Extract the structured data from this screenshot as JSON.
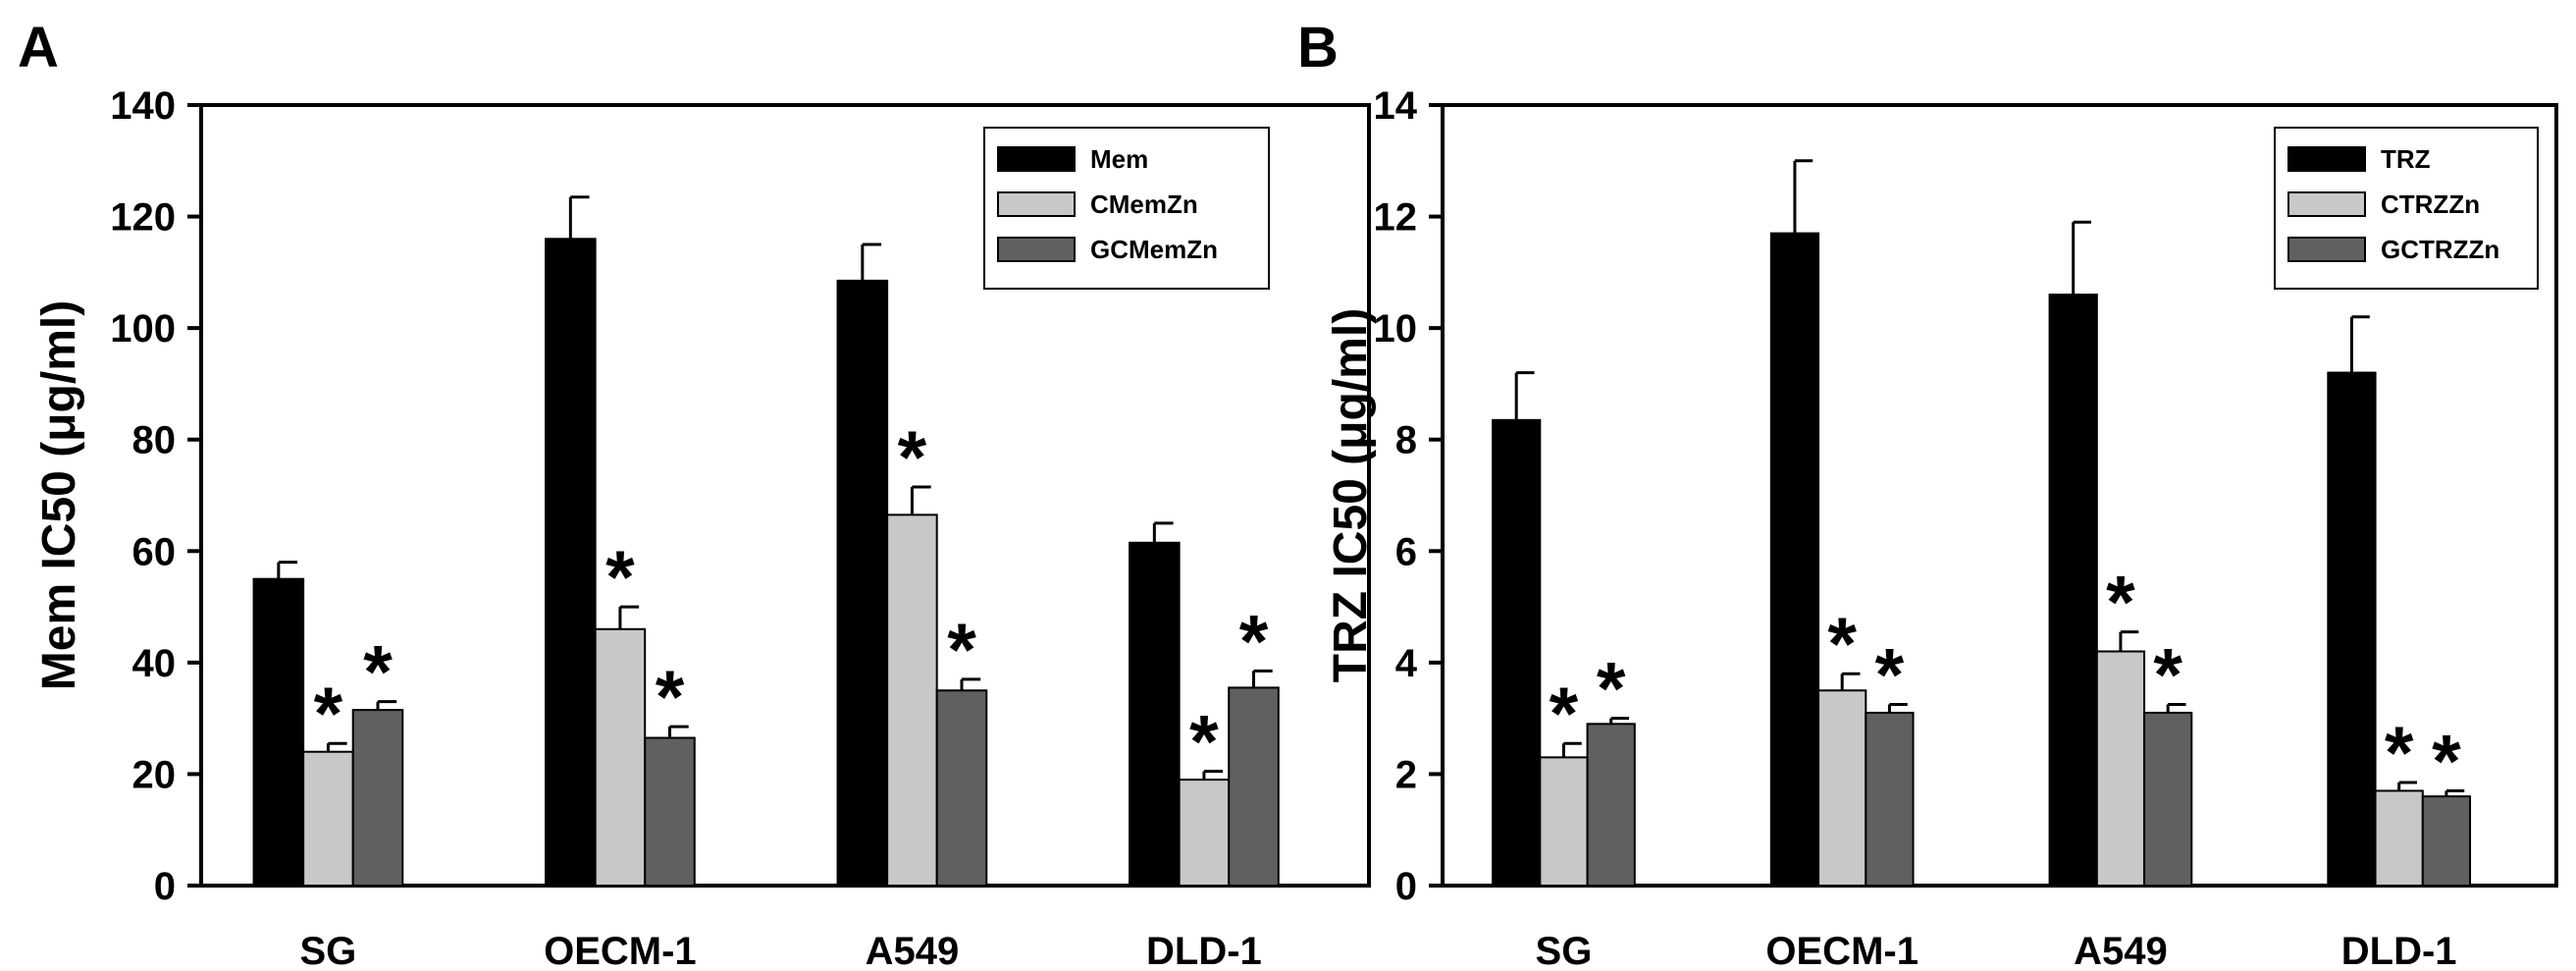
{
  "chart_data": [
    {
      "type": "bar",
      "panel_label": "A",
      "ylabel": "Mem IC50 (μg/ml)",
      "xlabel": "",
      "categories": [
        "SG",
        "OECM-1",
        "A549",
        "DLD-1"
      ],
      "ylim": [
        0,
        140
      ],
      "yticks": [
        0,
        20,
        40,
        60,
        80,
        100,
        120,
        140
      ],
      "grid": false,
      "legend_position": "top-right",
      "series": [
        {
          "name": "Mem",
          "color": "#000000",
          "values": [
            55,
            116,
            108.5,
            61.5
          ],
          "errors": [
            3,
            7.5,
            6.5,
            3.5
          ],
          "significant": [
            false,
            false,
            false,
            false
          ]
        },
        {
          "name": "CMemZn",
          "color": "#c8c8c8",
          "values": [
            24,
            46,
            66.5,
            19
          ],
          "errors": [
            1.5,
            4,
            5,
            1.5
          ],
          "significant": [
            true,
            true,
            true,
            true
          ]
        },
        {
          "name": "GCMemZn",
          "color": "#606060",
          "values": [
            31.5,
            26.5,
            35,
            35.5
          ],
          "errors": [
            1.5,
            2,
            2,
            3
          ],
          "significant": [
            true,
            true,
            true,
            true
          ]
        }
      ],
      "annotation_marker": "*"
    },
    {
      "type": "bar",
      "panel_label": "B",
      "ylabel": "TRZ IC50 (μg/ml)",
      "xlabel": "",
      "categories": [
        "SG",
        "OECM-1",
        "A549",
        "DLD-1"
      ],
      "ylim": [
        0,
        14
      ],
      "yticks": [
        0,
        2,
        4,
        6,
        8,
        10,
        12,
        14
      ],
      "grid": false,
      "legend_position": "top-right",
      "series": [
        {
          "name": "TRZ",
          "color": "#000000",
          "values": [
            8.35,
            11.7,
            10.6,
            9.2
          ],
          "errors": [
            0.85,
            1.3,
            1.3,
            1.0
          ],
          "significant": [
            false,
            false,
            false,
            false
          ]
        },
        {
          "name": "CTRZZn",
          "color": "#c8c8c8",
          "values": [
            2.3,
            3.5,
            4.2,
            1.7
          ],
          "errors": [
            0.25,
            0.3,
            0.35,
            0.15
          ],
          "significant": [
            true,
            true,
            true,
            true
          ]
        },
        {
          "name": "GCTRZZn",
          "color": "#606060",
          "values": [
            2.9,
            3.1,
            3.1,
            1.6
          ],
          "errors": [
            0.1,
            0.15,
            0.15,
            0.1
          ],
          "significant": [
            true,
            true,
            true,
            true
          ]
        }
      ],
      "annotation_marker": "*"
    }
  ]
}
